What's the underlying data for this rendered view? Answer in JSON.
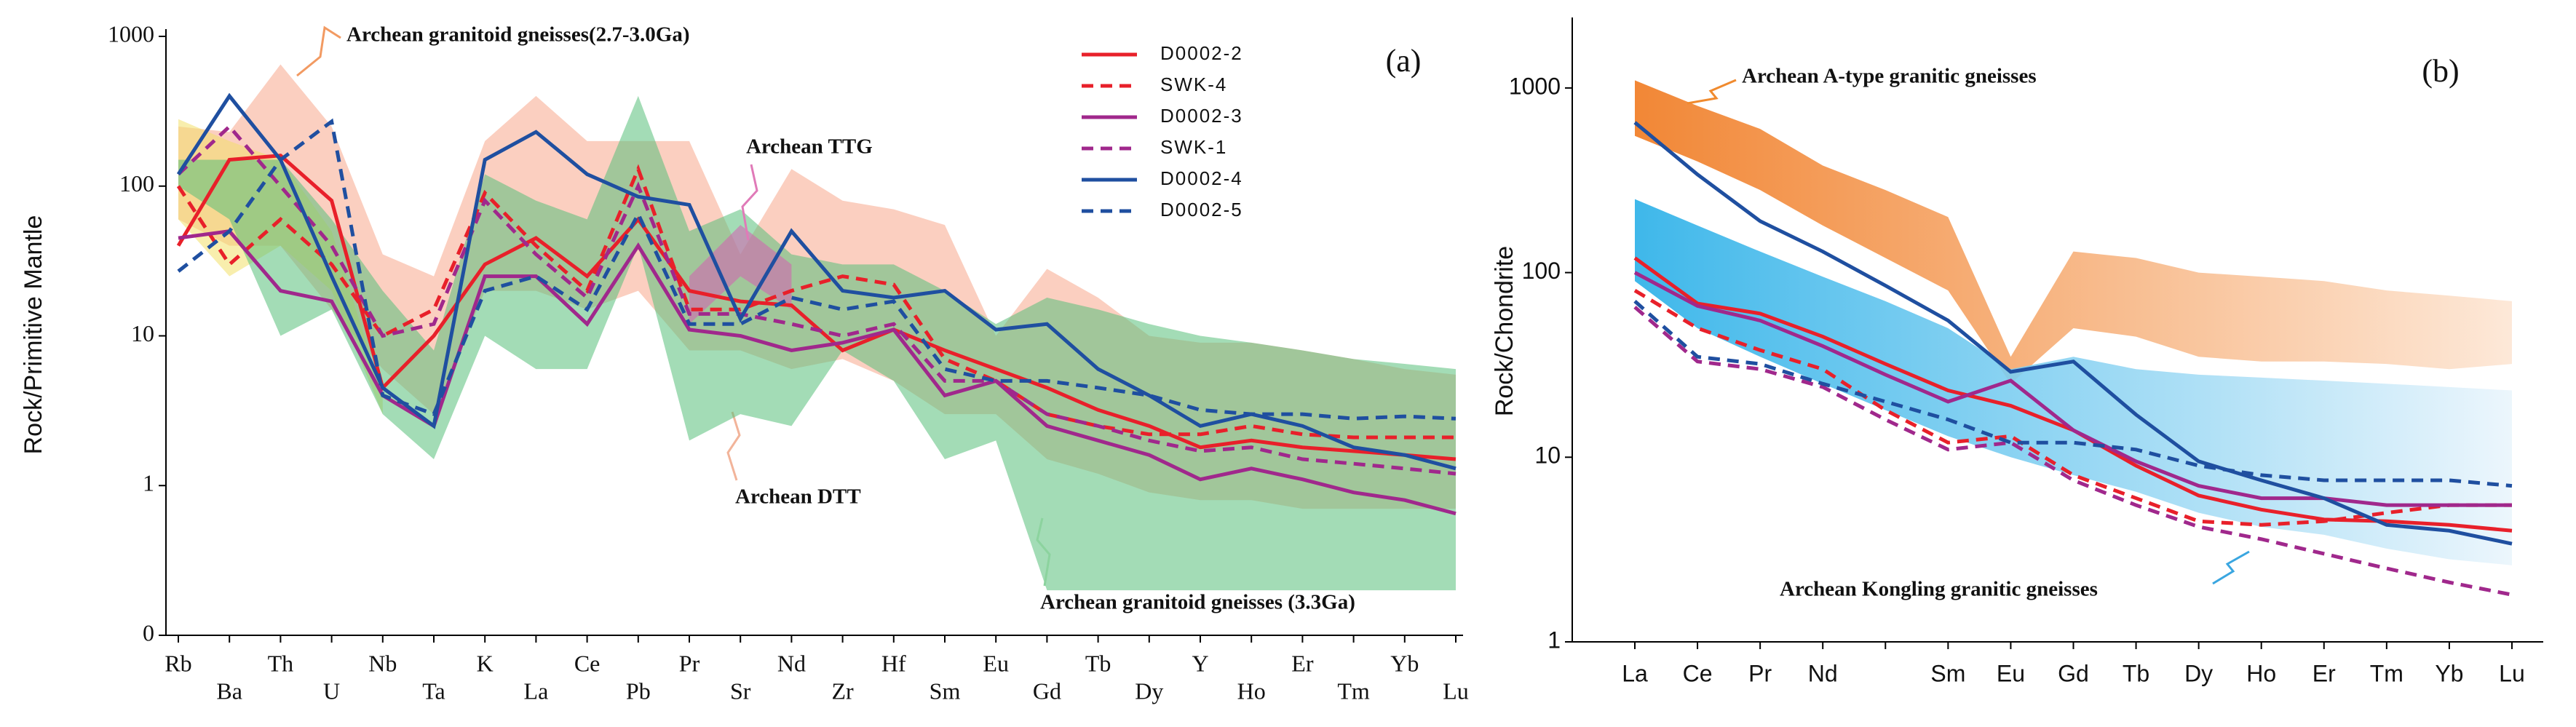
{
  "chart_data": [
    {
      "type": "line",
      "panel_label": "(a)",
      "ylabel": "Rock/Primitive Mantle",
      "yscale": "log",
      "categories": [
        "Rb",
        "Ba",
        "Th",
        "U",
        "Nb",
        "Ta",
        "K",
        "La",
        "Ce",
        "Pb",
        "Pr",
        "Sr",
        "Nd",
        "Zr",
        "Hf",
        "Sm",
        "Eu",
        "Gd",
        "Tb",
        "Dy",
        "Y",
        "Ho",
        "Er",
        "Tm",
        "Yb",
        "Lu"
      ],
      "ylim": [
        0.1,
        1000
      ],
      "yticks": [
        {
          "value": 0.1,
          "label": "0"
        },
        1,
        10,
        100,
        1000
      ],
      "legend": "upper right",
      "fields": [
        {
          "name": "Archean granitoid gneisses(2.7-3.0Ga)",
          "color": "#f7a88c",
          "text_color": "#f29a62",
          "high": [
            250,
            230,
            650,
            250,
            35,
            25,
            200,
            400,
            200,
            200,
            200,
            35,
            130,
            80,
            70,
            55,
            10,
            28,
            18,
            10,
            9,
            9,
            8,
            7,
            6,
            5.5
          ],
          "low": [
            60,
            40,
            40,
            15,
            6,
            3,
            20,
            20,
            15,
            20,
            8,
            8,
            6,
            7,
            5,
            3,
            3,
            1.5,
            1.2,
            0.9,
            0.8,
            0.8,
            0.7,
            0.7,
            0.7,
            0.7
          ]
        },
        {
          "name": "Archean DTT",
          "color": "#f3e06a",
          "text_color": "#f2b49a",
          "high": [
            280,
            200,
            150,
            50,
            4,
            null,
            null,
            null,
            null,
            null,
            null,
            null,
            null,
            null,
            null,
            null,
            null,
            null,
            null,
            null,
            null,
            null,
            null,
            null,
            null,
            null
          ],
          "low": [
            60,
            25,
            40,
            20,
            3,
            null,
            null,
            null,
            null,
            null,
            null,
            null,
            null,
            null,
            null,
            null,
            null,
            null,
            null,
            null,
            null,
            null,
            null,
            null,
            null,
            null
          ]
        },
        {
          "name": "Archean granitoid gneisses (3.3Ga)",
          "color": "#58c07a",
          "text_color": "#8cd39e",
          "high": [
            150,
            150,
            150,
            60,
            20,
            8,
            120,
            80,
            60,
            400,
            50,
            70,
            35,
            30,
            30,
            20,
            12,
            18,
            15,
            12,
            10,
            9,
            8,
            7,
            6.5,
            6
          ],
          "low": [
            100,
            60,
            10,
            15,
            3,
            1.5,
            10,
            6,
            6,
            40,
            2,
            3,
            2.5,
            8,
            5,
            1.5,
            2,
            0.2,
            0.2,
            0.2,
            0.2,
            0.2,
            0.2,
            0.2,
            0.2,
            0.2
          ]
        },
        {
          "name": "Archean TTG",
          "color": "#d65fb3",
          "text_color": "#e07ab8",
          "high": [
            null,
            null,
            null,
            null,
            null,
            null,
            null,
            null,
            null,
            null,
            25,
            55,
            30,
            null,
            null,
            null,
            null,
            null,
            null,
            null,
            null,
            null,
            null,
            null,
            null,
            null
          ],
          "low": [
            null,
            null,
            null,
            null,
            null,
            null,
            null,
            null,
            null,
            null,
            12,
            25,
            15,
            null,
            null,
            null,
            null,
            null,
            null,
            null,
            null,
            null,
            null,
            null,
            null,
            null
          ]
        }
      ],
      "series": [
        {
          "name": "D0002-2",
          "color": "#e8202a",
          "dashed": false,
          "values": [
            40,
            150,
            160,
            80,
            4.5,
            10,
            30,
            45,
            25,
            60,
            20,
            17,
            16,
            8,
            11,
            8,
            6,
            4.5,
            3.2,
            2.5,
            1.8,
            2,
            1.8,
            1.7,
            1.6,
            1.5
          ]
        },
        {
          "name": "SWK-4",
          "color": "#e8202a",
          "dashed": true,
          "values": [
            100,
            30,
            60,
            30,
            10,
            15,
            90,
            40,
            20,
            130,
            15,
            15,
            20,
            25,
            22,
            7,
            5,
            3,
            2.5,
            2.2,
            2.2,
            2.5,
            2.2,
            2.1,
            2.1,
            2.1
          ]
        },
        {
          "name": "D0002-3",
          "color": "#a0288c",
          "dashed": false,
          "values": [
            45,
            50,
            20,
            17,
            4,
            2.5,
            25,
            25,
            12,
            40,
            11,
            10,
            8,
            9,
            11,
            4,
            5,
            2.5,
            2,
            1.6,
            1.1,
            1.3,
            1.1,
            0.9,
            0.8,
            0.65
          ]
        },
        {
          "name": "SWK-1",
          "color": "#a0288c",
          "dashed": true,
          "values": [
            120,
            250,
            100,
            40,
            10,
            12,
            80,
            35,
            18,
            100,
            14,
            14,
            12,
            10,
            12,
            5,
            5,
            3,
            2.5,
            2,
            1.7,
            1.8,
            1.5,
            1.4,
            1.3,
            1.2
          ]
        },
        {
          "name": "D0002-4",
          "color": "#1f4fa0",
          "dashed": false,
          "values": [
            120,
            400,
            150,
            25,
            4.5,
            2.5,
            150,
            230,
            120,
            85,
            75,
            13,
            50,
            20,
            18,
            20,
            11,
            12,
            6,
            4,
            2.5,
            3,
            2.5,
            1.8,
            1.6,
            1.3
          ]
        },
        {
          "name": "D0002-5",
          "color": "#1f4fa0",
          "dashed": true,
          "values": [
            27,
            50,
            150,
            270,
            4,
            3,
            20,
            25,
            15,
            65,
            12,
            12,
            18,
            15,
            17,
            6,
            5,
            5,
            4.5,
            4,
            3.2,
            3,
            3,
            2.8,
            2.9,
            2.8
          ]
        }
      ]
    },
    {
      "type": "line",
      "panel_label": "(b)",
      "ylabel": "Rock/Chondrite",
      "yscale": "log",
      "categories": [
        "La",
        "Ce",
        "Pr",
        "Nd",
        null,
        "Sm",
        "Eu",
        "Gd",
        "Tb",
        "Dy",
        "Ho",
        "Er",
        "Tm",
        "Yb",
        "Lu"
      ],
      "ylim": [
        1,
        2200
      ],
      "yticks": [
        1,
        10,
        100,
        1000
      ],
      "fields": [
        {
          "name": "Archean A-type granitic gneisses",
          "colors": [
            "#f07a20",
            "#fde6d4"
          ],
          "text_color": "#f08a2e",
          "high": [
            1100,
            800,
            600,
            380,
            280,
            200,
            35,
            130,
            120,
            100,
            95,
            90,
            80,
            75,
            70
          ],
          "low": [
            550,
            400,
            280,
            180,
            120,
            80,
            25,
            50,
            45,
            35,
            33,
            33,
            32,
            30,
            32
          ]
        },
        {
          "name": "Archean Kongling granitic  gneisses",
          "colors": [
            "#2ab0e8",
            "#eaf5fc"
          ],
          "text_color": "#3aa6e0",
          "high": [
            250,
            180,
            130,
            95,
            70,
            50,
            30,
            35,
            30,
            28,
            27,
            26,
            25,
            24,
            23
          ],
          "low": [
            90,
            50,
            35,
            25,
            18,
            13,
            10,
            8,
            6.5,
            5,
            4.2,
            3.8,
            3.2,
            2.8,
            2.6
          ]
        }
      ],
      "series": [
        {
          "color": "#e8202a",
          "dashed": false,
          "values": [
            120,
            68,
            60,
            45,
            32,
            23,
            19,
            14,
            9,
            6.2,
            5.2,
            4.6,
            4.5,
            4.3,
            4.0
          ]
        },
        {
          "color": "#e8202a",
          "dashed": true,
          "values": [
            80,
            50,
            38,
            30,
            18,
            12,
            13,
            8,
            6,
            4.5,
            4.3,
            4.5,
            5,
            5.5,
            5.5
          ]
        },
        {
          "color": "#a0288c",
          "dashed": false,
          "values": [
            100,
            66,
            55,
            40,
            28,
            20,
            26,
            14,
            9.5,
            7,
            6,
            6,
            5.5,
            5.5,
            5.5
          ]
        },
        {
          "color": "#a0288c",
          "dashed": true,
          "values": [
            65,
            33,
            30,
            24,
            16,
            11,
            12,
            7.5,
            5.5,
            4.2,
            3.6,
            3,
            2.5,
            2.1,
            1.8
          ]
        },
        {
          "color": "#1f4fa0",
          "dashed": false,
          "values": [
            650,
            340,
            190,
            130,
            85,
            55,
            29,
            33,
            17,
            9.5,
            7.5,
            6,
            4.3,
            4,
            3.4
          ]
        },
        {
          "color": "#1f4fa0",
          "dashed": true,
          "values": [
            70,
            35,
            32,
            25,
            20,
            16,
            12,
            12,
            11,
            9,
            8,
            7.5,
            7.5,
            7.5,
            7
          ]
        }
      ]
    }
  ]
}
